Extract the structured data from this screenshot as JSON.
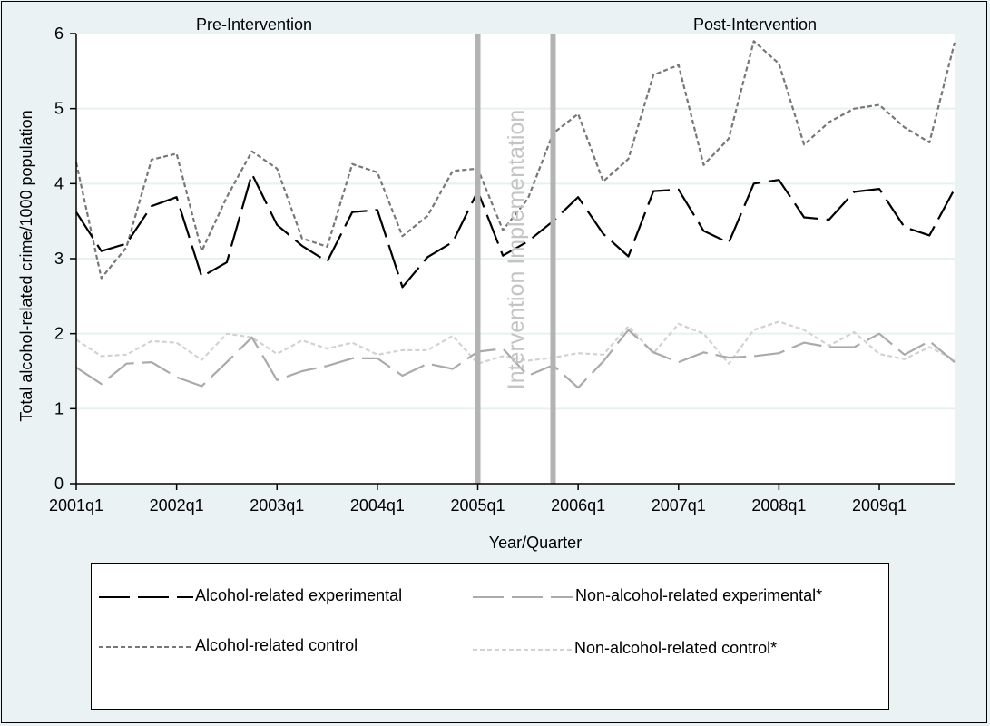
{
  "chart_data": {
    "type": "line",
    "ylabel": "Total alcohol-related crime/1000 population",
    "xlabel": "Year/Quarter",
    "ylim": [
      0,
      6
    ],
    "yticks": [
      0,
      1,
      2,
      3,
      4,
      5,
      6
    ],
    "x_ticks": [
      "2001q1",
      "2002q1",
      "2003q1",
      "2004q1",
      "2005q1",
      "2006q1",
      "2007q1",
      "2008q1",
      "2009q1"
    ],
    "x_range_quarters": [
      0,
      35
    ],
    "grid": "horizontal",
    "annotations": {
      "pre": "Pre-Intervention",
      "post": "Post-Intervention",
      "implementation": "Intervention Implementation"
    },
    "intervention_lines": [
      "2005q1",
      "2005q4"
    ],
    "series": [
      {
        "name": "Alcohol-related experimental",
        "color": "#000000",
        "style": "longdash",
        "values": [
          3.62,
          3.1,
          3.2,
          3.7,
          3.82,
          2.76,
          2.95,
          4.13,
          3.45,
          3.17,
          2.96,
          3.62,
          3.65,
          2.62,
          3.02,
          3.22,
          3.9,
          3.04,
          3.23,
          3.5,
          3.82,
          3.33,
          3.03,
          3.9,
          3.92,
          3.37,
          3.21,
          4.0,
          4.05,
          3.55,
          3.52,
          3.89,
          3.93,
          3.42,
          3.31,
          3.93
        ]
      },
      {
        "name": "Non-alcohol-related experimental*",
        "color": "#aaaaaa",
        "style": "longdash",
        "values": [
          1.55,
          1.33,
          1.6,
          1.62,
          1.42,
          1.3,
          1.62,
          1.95,
          1.38,
          1.5,
          1.57,
          1.67,
          1.67,
          1.44,
          1.6,
          1.53,
          1.76,
          1.8,
          1.44,
          1.58,
          1.28,
          1.63,
          2.05,
          1.75,
          1.62,
          1.75,
          1.68,
          1.7,
          1.74,
          1.88,
          1.82,
          1.82,
          2.0,
          1.72,
          1.9,
          1.62
        ]
      },
      {
        "name": "Alcohol-related control",
        "color": "#777777",
        "style": "shortdash",
        "values": [
          4.28,
          2.74,
          3.15,
          4.32,
          4.4,
          3.1,
          3.82,
          4.43,
          4.2,
          3.27,
          3.16,
          4.26,
          4.15,
          3.3,
          3.57,
          4.17,
          4.2,
          3.38,
          3.8,
          4.67,
          4.93,
          4.03,
          4.33,
          5.45,
          5.58,
          4.25,
          4.6,
          5.9,
          5.6,
          4.52,
          4.82,
          5.0,
          5.05,
          4.75,
          4.55,
          5.88
        ]
      },
      {
        "name": "Non-alcohol-related control*",
        "color": "#d2d2d2",
        "style": "shortdash",
        "values": [
          1.92,
          1.7,
          1.72,
          1.9,
          1.88,
          1.65,
          2.0,
          1.95,
          1.73,
          1.91,
          1.8,
          1.88,
          1.72,
          1.78,
          1.78,
          1.97,
          1.6,
          1.7,
          1.64,
          1.68,
          1.74,
          1.72,
          2.1,
          1.74,
          2.13,
          2.0,
          1.6,
          2.05,
          2.16,
          2.05,
          1.84,
          2.02,
          1.73,
          1.66,
          1.82,
          1.65
        ]
      }
    ]
  }
}
